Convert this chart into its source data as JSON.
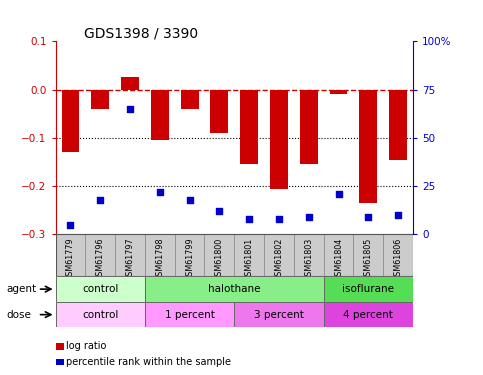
{
  "title": "GDS1398 / 3390",
  "samples": [
    "GSM61779",
    "GSM61796",
    "GSM61797",
    "GSM61798",
    "GSM61799",
    "GSM61800",
    "GSM61801",
    "GSM61802",
    "GSM61803",
    "GSM61804",
    "GSM61805",
    "GSM61806"
  ],
  "log_ratio": [
    -0.13,
    -0.04,
    0.025,
    -0.105,
    -0.04,
    -0.09,
    -0.155,
    -0.205,
    -0.155,
    -0.01,
    -0.235,
    -0.145
  ],
  "percentile_rank": [
    5,
    18,
    65,
    22,
    18,
    12,
    8,
    8,
    9,
    21,
    9,
    10
  ],
  "bar_color": "#cc0000",
  "dot_color": "#0000cc",
  "ylim_left": [
    -0.3,
    0.1
  ],
  "ylim_right": [
    0,
    100
  ],
  "yticks_left": [
    -0.3,
    -0.2,
    -0.1,
    0,
    0.1
  ],
  "yticks_right": [
    0,
    25,
    50,
    75,
    100
  ],
  "hline_color": "#cc0000",
  "hline_style": "--",
  "dotted_lines": [
    -0.1,
    -0.2
  ],
  "agent_groups": [
    {
      "label": "control",
      "start": 0,
      "end": 3,
      "color": "#ccffcc"
    },
    {
      "label": "halothane",
      "start": 3,
      "end": 9,
      "color": "#88ee88"
    },
    {
      "label": "isoflurane",
      "start": 9,
      "end": 12,
      "color": "#55dd55"
    }
  ],
  "dose_groups": [
    {
      "label": "control",
      "start": 0,
      "end": 3,
      "color": "#ffccff"
    },
    {
      "label": "1 percent",
      "start": 3,
      "end": 6,
      "color": "#ff99ff"
    },
    {
      "label": "3 percent",
      "start": 6,
      "end": 9,
      "color": "#ee77ee"
    },
    {
      "label": "4 percent",
      "start": 9,
      "end": 12,
      "color": "#dd44dd"
    }
  ],
  "legend_items": [
    {
      "label": "log ratio",
      "color": "#cc0000"
    },
    {
      "label": "percentile rank within the sample",
      "color": "#0000cc"
    }
  ],
  "right_axis_color": "#0000cc",
  "left_axis_color": "#cc0000",
  "sample_bg": "#cccccc"
}
